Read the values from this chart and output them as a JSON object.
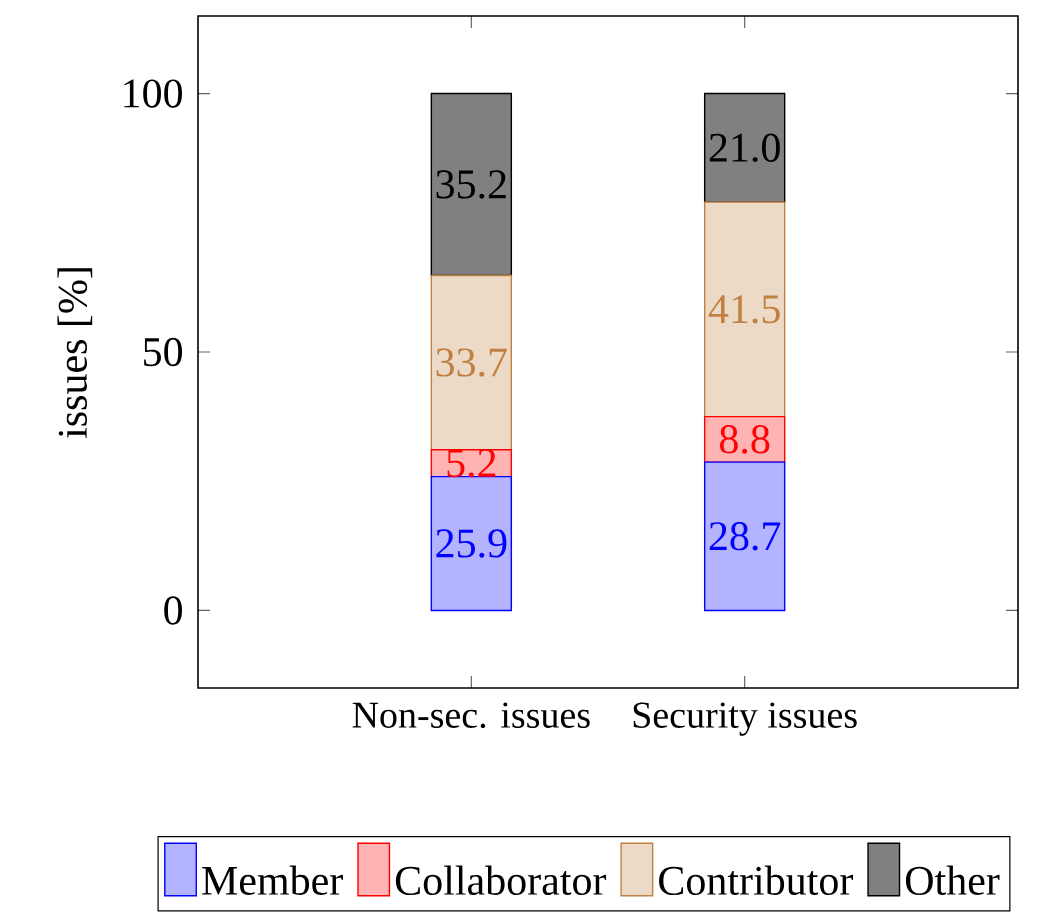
{
  "chart_data": {
    "type": "bar",
    "stacked": true,
    "ylabel": "issues [%]",
    "categories": [
      "Non-sec. issues",
      "Security issues"
    ],
    "series": [
      {
        "name": "Member",
        "color": "#b3b3ff",
        "values": [
          25.9,
          28.7
        ],
        "value_labels": [
          "25.9",
          "28.7"
        ]
      },
      {
        "name": "Collaborator",
        "color": "#ffb3b3",
        "values": [
          5.2,
          8.8
        ],
        "value_labels": [
          "5.2",
          "8.8"
        ]
      },
      {
        "name": "Contributor",
        "color": "#ecd9c6",
        "values": [
          33.7,
          41.5
        ],
        "value_labels": [
          "33.7",
          "41.5"
        ]
      },
      {
        "name": "Other",
        "color": "#808080",
        "values": [
          35.2,
          21.0
        ],
        "value_labels": [
          "35.2",
          "21.0"
        ]
      }
    ],
    "ylim": [
      -15,
      115
    ],
    "yticks": [
      0,
      50,
      100
    ],
    "legend": "bottom"
  }
}
